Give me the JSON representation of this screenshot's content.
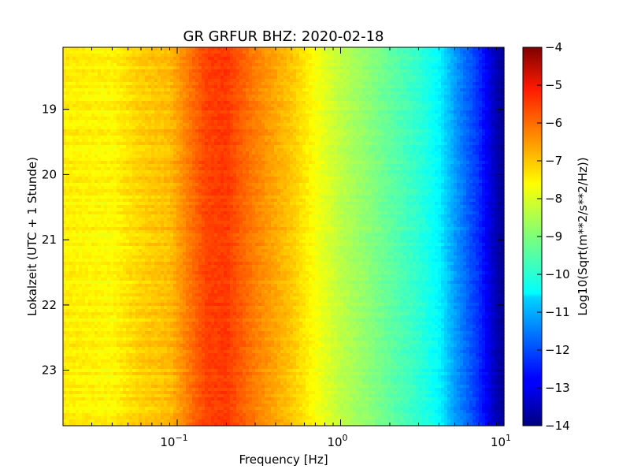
{
  "chart_data": {
    "type": "heatmap",
    "title": "GR GRFUR BHZ: 2020-02-18",
    "xlabel": "Frequency [Hz]",
    "ylabel": "Lokalzeit (UTC + 1 Stunde)",
    "x_scale": "log",
    "x_range_hz": [
      0.02,
      10
    ],
    "y_range_hours": [
      18.05,
      23.85
    ],
    "y_ticks": [
      "19",
      "20",
      "21",
      "22",
      "23"
    ],
    "y_tick_values": [
      19,
      20,
      21,
      22,
      23
    ],
    "x_ticks": [
      {
        "value": 0.1,
        "base": "10",
        "exp": "−1"
      },
      {
        "value": 1,
        "base": "10",
        "exp": "0"
      },
      {
        "value": 10,
        "base": "10",
        "exp": "1"
      }
    ],
    "colorbar": {
      "label": "Log10(Sqrt(m**2/s**2/Hz))",
      "range": [
        -14,
        -4
      ],
      "ticks": [
        "−4",
        "−5",
        "−6",
        "−7",
        "−8",
        "−9",
        "−10",
        "−11",
        "−12",
        "−13",
        "−14"
      ],
      "tick_values": [
        -4,
        -5,
        -6,
        -7,
        -8,
        -9,
        -10,
        -11,
        -12,
        -13,
        -14
      ],
      "colormap": "jet"
    },
    "spectrum_profile": {
      "frequency_hz": [
        0.02,
        0.04,
        0.06,
        0.09,
        0.12,
        0.15,
        0.2,
        0.3,
        0.5,
        0.7,
        1.0,
        1.5,
        2.0,
        3.0,
        4.0,
        5.0,
        6.0,
        7.0,
        8.0,
        9.0,
        10.0
      ],
      "log10_amplitude": [
        -7.6,
        -7.7,
        -7.3,
        -7.1,
        -6.4,
        -5.9,
        -5.8,
        -6.5,
        -7.2,
        -7.8,
        -8.4,
        -8.9,
        -9.3,
        -9.8,
        -10.3,
        -11.2,
        -11.8,
        -12.3,
        -12.9,
        -13.5,
        -13.8
      ]
    }
  }
}
